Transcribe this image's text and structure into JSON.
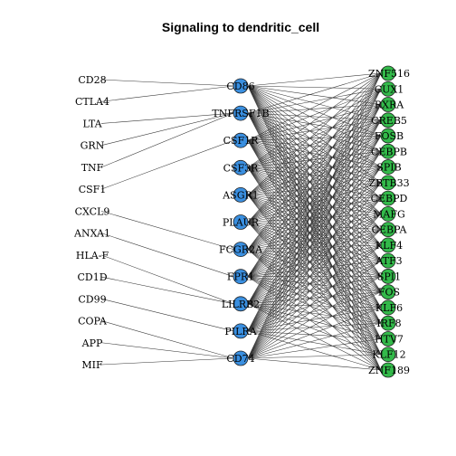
{
  "title": "Signaling  to dendritic_cell",
  "colors": {
    "receptor": "#3A8FE0",
    "target": "#33B94A",
    "node_stroke": "#222222",
    "edge": "#333333"
  },
  "ligands": [
    "CD28",
    "CTLA4",
    "LTA",
    "GRN",
    "TNF",
    "CSF1",
    "CXCL9",
    "ANXA1",
    "HLA-F",
    "CD1D",
    "CD99",
    "COPA",
    "APP",
    "MIF"
  ],
  "receptors": [
    "CD86",
    "TNFRSF1B",
    "CSF1R",
    "CSF3R",
    "ASGR1",
    "PLAUR",
    "FCGR2A",
    "FPR1",
    "LILRB2",
    "PILRA",
    "CD74"
  ],
  "targets": [
    "ZNF516",
    "CUX1",
    "RXRA",
    "CREB5",
    "FOSB",
    "CEBPB",
    "SPIB",
    "ZBTB33",
    "CEBPD",
    "MAFG",
    "CEBPA",
    "KLF4",
    "ATF3",
    "SPI1",
    "FOS",
    "KLF6",
    "IRF8",
    "HTV7",
    "KLF12",
    "ZNF189"
  ],
  "ligand_receptor_edges": [
    [
      "CD28",
      "CD86"
    ],
    [
      "CTLA4",
      "CD86"
    ],
    [
      "LTA",
      "TNFRSF1B"
    ],
    [
      "GRN",
      "TNFRSF1B"
    ],
    [
      "TNF",
      "TNFRSF1B"
    ],
    [
      "CSF1",
      "CSF1R"
    ],
    [
      "CXCL9",
      "FCGR2A"
    ],
    [
      "ANXA1",
      "FPR1"
    ],
    [
      "HLA-F",
      "LILRB2"
    ],
    [
      "CD1D",
      "LILRB2"
    ],
    [
      "CD99",
      "PILRA"
    ],
    [
      "COPA",
      "CD74"
    ],
    [
      "APP",
      "CD74"
    ],
    [
      "MIF",
      "CD74"
    ]
  ]
}
